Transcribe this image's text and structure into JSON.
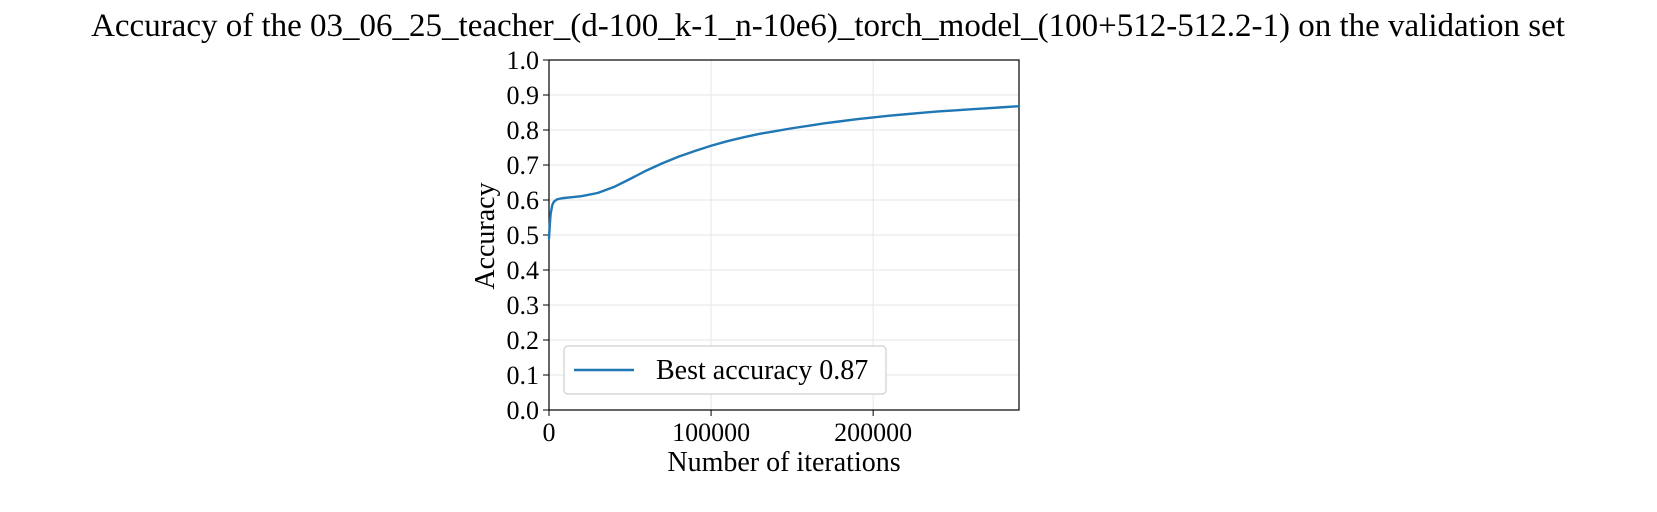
{
  "chart_data": {
    "type": "line",
    "title": "Accuracy of the 03_06_25_teacher_(d-100_k-1_n-10e6)_torch_model_(100+512-512.2-1) on the validation set",
    "xlabel": "Number of iterations",
    "ylabel": "Accuracy",
    "xlim": [
      0,
      290000
    ],
    "ylim": [
      0.0,
      1.0
    ],
    "xticks": [
      0,
      100000,
      200000
    ],
    "xtick_labels": [
      "0",
      "100000",
      "200000"
    ],
    "yticks": [
      0.0,
      0.1,
      0.2,
      0.3,
      0.4,
      0.5,
      0.6,
      0.7,
      0.8,
      0.9,
      1.0
    ],
    "ytick_labels": [
      "0.0",
      "0.1",
      "0.2",
      "0.3",
      "0.4",
      "0.5",
      "0.6",
      "0.7",
      "0.8",
      "0.9",
      "1.0"
    ],
    "grid": true,
    "legend_position": "lower-left",
    "series": [
      {
        "name": "Best accuracy 0.87",
        "color": "#1f77b4",
        "x": [
          0,
          500,
          1000,
          2000,
          3000,
          5000,
          8000,
          12000,
          20000,
          30000,
          40000,
          50000,
          60000,
          70000,
          80000,
          90000,
          100000,
          110000,
          120000,
          130000,
          140000,
          150000,
          160000,
          170000,
          180000,
          190000,
          200000,
          210000,
          220000,
          230000,
          240000,
          250000,
          260000,
          270000,
          280000,
          290000
        ],
        "y": [
          0.49,
          0.53,
          0.56,
          0.585,
          0.595,
          0.602,
          0.605,
          0.607,
          0.611,
          0.62,
          0.637,
          0.66,
          0.684,
          0.705,
          0.724,
          0.74,
          0.755,
          0.768,
          0.779,
          0.789,
          0.797,
          0.805,
          0.812,
          0.819,
          0.825,
          0.831,
          0.836,
          0.841,
          0.845,
          0.849,
          0.853,
          0.856,
          0.859,
          0.862,
          0.865,
          0.868
        ]
      }
    ]
  }
}
